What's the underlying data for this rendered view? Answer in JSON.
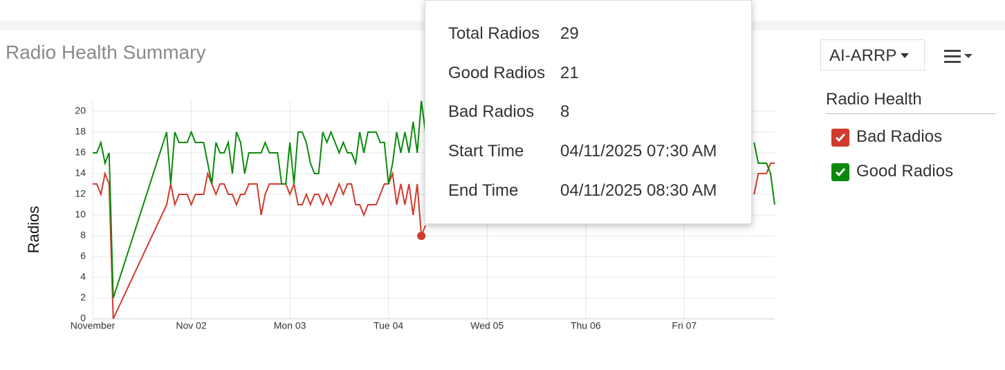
{
  "title": "Radio Health Summary",
  "controls": {
    "dropdown": "AI-ARRP"
  },
  "legend_title": "Radio Health",
  "chart_data": {
    "type": "line",
    "ylabel": "Radios",
    "x": [
      0,
      1,
      2,
      3,
      4,
      5,
      18,
      19,
      20,
      21,
      22,
      23,
      24,
      25,
      26,
      27,
      28,
      29,
      30,
      31,
      32,
      33,
      34,
      35,
      36,
      37,
      38,
      39,
      40,
      41,
      42,
      43,
      44,
      45,
      46,
      47,
      48,
      49,
      50,
      51,
      52,
      53,
      54,
      55,
      56,
      57,
      58,
      59,
      60,
      61,
      62,
      63,
      64,
      65,
      66,
      67,
      68,
      69,
      70,
      71,
      72,
      73,
      74,
      75,
      76,
      77,
      78,
      79,
      80,
      81,
      120,
      161,
      162,
      163,
      164,
      165,
      166
    ],
    "series": [
      {
        "name": "Bad Radios",
        "color": "#d13a2c",
        "values": [
          13,
          13,
          12,
          14,
          13,
          0,
          11,
          13,
          11,
          12,
          12,
          12,
          11,
          12,
          12,
          12,
          14,
          13,
          12,
          13,
          13,
          12,
          12,
          11,
          12,
          12,
          13,
          13,
          13,
          10,
          12,
          13,
          13,
          13,
          13,
          13,
          12,
          13,
          11,
          11,
          12,
          11,
          12,
          12,
          11,
          12,
          11,
          12,
          13,
          12,
          13,
          13,
          11,
          11,
          10,
          11,
          11,
          11,
          12,
          13,
          13,
          14,
          11,
          13,
          11,
          13,
          10,
          13,
          8,
          9,
          null,
          12,
          14,
          14,
          14,
          15,
          15
        ]
      },
      {
        "name": "Good Radios",
        "color": "#0a8a0a",
        "values": [
          16,
          16,
          17,
          15,
          16,
          2,
          18,
          13,
          18,
          17,
          17,
          17,
          18,
          17,
          17,
          17,
          15,
          13,
          17,
          16,
          16,
          17,
          14,
          18,
          17,
          14,
          16,
          16,
          16,
          16,
          17,
          16,
          16,
          16,
          13,
          13,
          17,
          13,
          18,
          18,
          17,
          15,
          14,
          14,
          18,
          17,
          18,
          17,
          16,
          17,
          16,
          16,
          15,
          18,
          16,
          18,
          18,
          18,
          17,
          17,
          13,
          15,
          18,
          16,
          18,
          16,
          19,
          16,
          21,
          18,
          null,
          17,
          15,
          15,
          15,
          14,
          11
        ]
      }
    ],
    "xlim": [
      0,
      166
    ],
    "xticks": [
      {
        "value": 0,
        "label": "November"
      },
      {
        "value": 24,
        "label": "Nov 02"
      },
      {
        "value": 48,
        "label": "Mon 03"
      },
      {
        "value": 72,
        "label": "Tue 04"
      },
      {
        "value": 96,
        "label": "Wed 05"
      },
      {
        "value": 120,
        "label": "Thu 06"
      },
      {
        "value": 144,
        "label": "Fri 07"
      }
    ],
    "ylim": [
      0,
      20
    ],
    "yticks": [
      0,
      2,
      4,
      6,
      8,
      10,
      12,
      14,
      16,
      18,
      20
    ],
    "grid": true,
    "highlight_index": 68
  },
  "tooltip": {
    "rows": [
      [
        "Total Radios",
        29
      ],
      [
        "Good Radios",
        21
      ],
      [
        "Bad Radios",
        8
      ],
      [
        "Start Time",
        "04/11/2025 07:30 AM"
      ],
      [
        "End Time",
        "04/11/2025 08:30 AM"
      ]
    ]
  }
}
